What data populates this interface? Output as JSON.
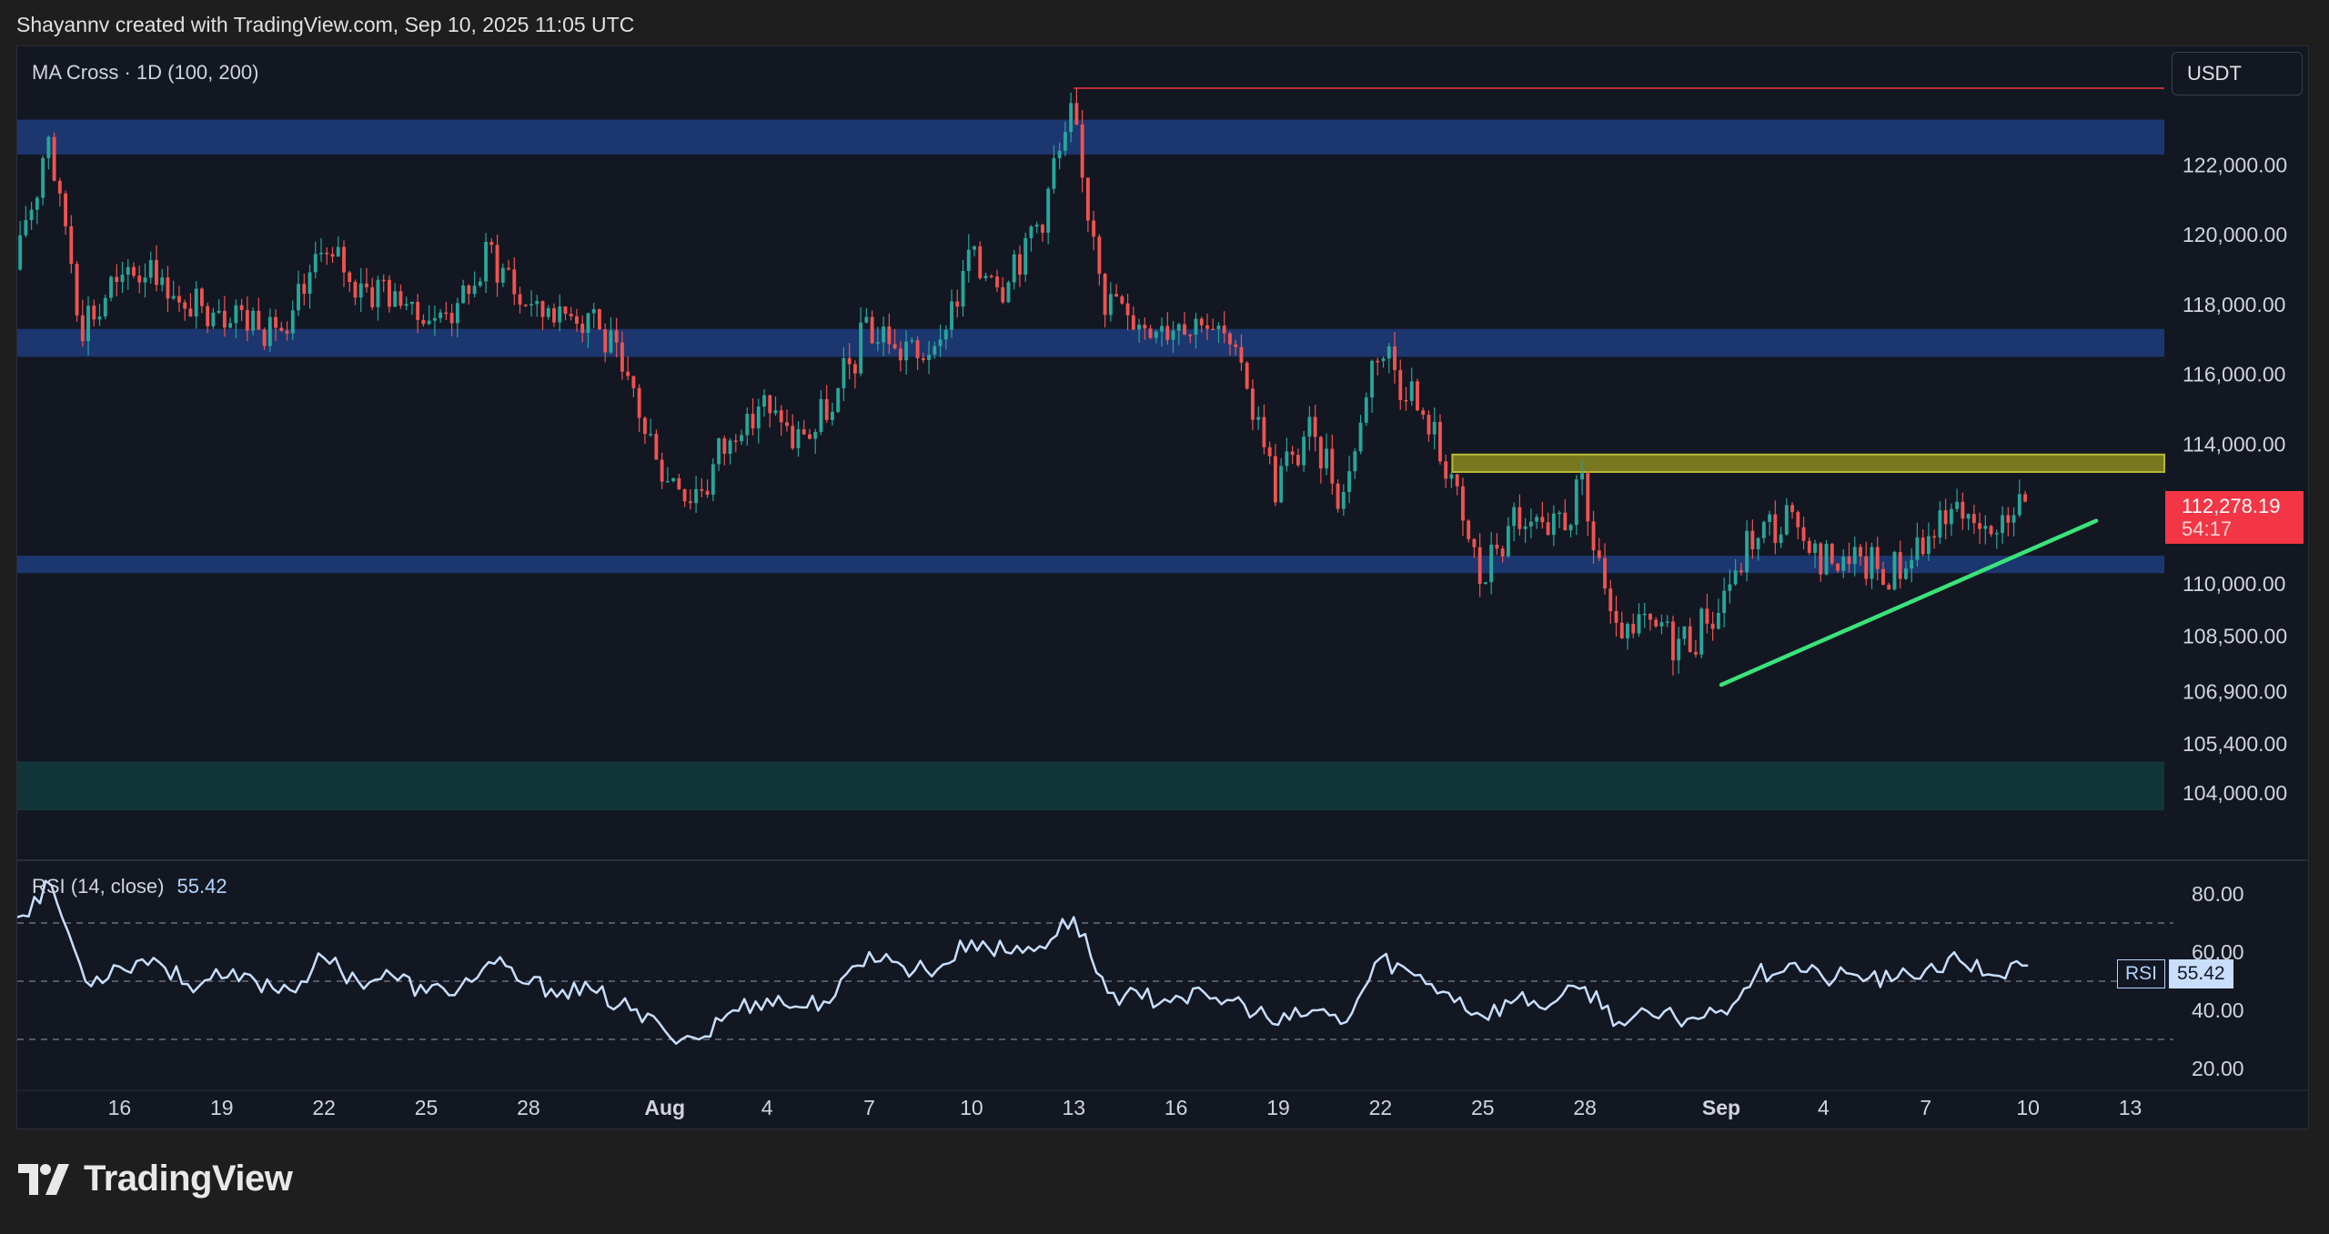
{
  "attribution": "Shayannv created with TradingView.com, Sep 10, 2025 11:05 UTC",
  "indicator_title": "MA Cross · 1D (100, 200)",
  "currency": "USDT",
  "last_price": {
    "price": "112,278.19",
    "countdown": "54:17"
  },
  "rsi_header": {
    "label": "RSI (14, close)",
    "value": "55.42"
  },
  "rsi_axis_label": {
    "name": "RSI",
    "value": "55.42"
  },
  "brand": "TradingView",
  "colors": {
    "background": "#131722",
    "up_candle": "#26a69a",
    "down_candle": "#ef5350",
    "zone_blue": "#1e3a78",
    "zone_yellow": "#8a8a1f",
    "zone_green": "#133a3a",
    "trendline": "#3ae37a",
    "rsi_line": "#c8defc",
    "price_label": "#f23645",
    "high_line": "#f23645"
  },
  "chart_data": [
    {
      "type": "candlestick",
      "title": "MA Cross · 1D (100, 200)",
      "y_unit": "USDT",
      "y_ticks": [
        104000,
        105400,
        106900,
        108500,
        110000,
        114000,
        116000,
        118000,
        120000,
        122000
      ],
      "y_tick_labels": [
        "104,000.00",
        "105,400.00",
        "106,900.00",
        "108,500.00",
        "110,000.00",
        "114,000.00",
        "116,000.00",
        "118,000.00",
        "120,000.00",
        "122,000.00"
      ],
      "ylim": [
        102200,
        125400
      ],
      "x_tick_labels": [
        "16",
        "19",
        "22",
        "25",
        "28",
        "Aug",
        "4",
        "7",
        "10",
        "13",
        "16",
        "19",
        "22",
        "25",
        "28",
        "Sep",
        "4",
        "7",
        "10",
        "13"
      ],
      "x_range": [
        "2025-07-13",
        "2025-09-14"
      ],
      "closes": [
        [
          "2025-07-13",
          119000
        ],
        [
          "2025-07-14",
          122800
        ],
        [
          "2025-07-15",
          117400
        ],
        [
          "2025-07-16",
          118600
        ],
        [
          "2025-07-17",
          119200
        ],
        [
          "2025-07-18",
          117800
        ],
        [
          "2025-07-19",
          118000
        ],
        [
          "2025-07-20",
          117600
        ],
        [
          "2025-07-21",
          117100
        ],
        [
          "2025-07-22",
          119700
        ],
        [
          "2025-07-23",
          118600
        ],
        [
          "2025-07-24",
          118400
        ],
        [
          "2025-07-25",
          117600
        ],
        [
          "2025-07-26",
          117900
        ],
        [
          "2025-07-27",
          119500
        ],
        [
          "2025-07-28",
          118000
        ],
        [
          "2025-07-29",
          117800
        ],
        [
          "2025-07-30",
          117700
        ],
        [
          "2025-07-31",
          115700
        ],
        [
          "2025-08-01",
          113300
        ],
        [
          "2025-08-02",
          112500
        ],
        [
          "2025-08-03",
          114200
        ],
        [
          "2025-08-04",
          115100
        ],
        [
          "2025-08-05",
          114100
        ],
        [
          "2025-08-06",
          115000
        ],
        [
          "2025-08-07",
          117400
        ],
        [
          "2025-08-08",
          116700
        ],
        [
          "2025-08-09",
          116500
        ],
        [
          "2025-08-10",
          119300
        ],
        [
          "2025-08-11",
          118700
        ],
        [
          "2025-08-12",
          120200
        ],
        [
          "2025-08-13",
          123400
        ],
        [
          "2025-08-14",
          118300
        ],
        [
          "2025-08-15",
          117400
        ],
        [
          "2025-08-16",
          117500
        ],
        [
          "2025-08-17",
          117500
        ],
        [
          "2025-08-18",
          116300
        ],
        [
          "2025-08-19",
          112900
        ],
        [
          "2025-08-20",
          114300
        ],
        [
          "2025-08-21",
          112500
        ],
        [
          "2025-08-22",
          116900
        ],
        [
          "2025-08-23",
          115400
        ],
        [
          "2025-08-24",
          113500
        ],
        [
          "2025-08-25",
          110100
        ],
        [
          "2025-08-26",
          111800
        ],
        [
          "2025-08-27",
          111300
        ],
        [
          "2025-08-28",
          112600
        ],
        [
          "2025-08-29",
          108400
        ],
        [
          "2025-08-30",
          108800
        ],
        [
          "2025-08-31",
          108300
        ],
        [
          "2025-09-01",
          109300
        ],
        [
          "2025-09-02",
          111300
        ],
        [
          "2025-09-03",
          111800
        ],
        [
          "2025-09-04",
          110700
        ],
        [
          "2025-09-05",
          110700
        ],
        [
          "2025-09-06",
          110200
        ],
        [
          "2025-09-07",
          111200
        ],
        [
          "2025-09-08",
          112100
        ],
        [
          "2025-09-09",
          111500
        ],
        [
          "2025-09-10",
          112278.19
        ]
      ],
      "all_time_high": 124200,
      "zones": [
        {
          "name": "resistance-upper",
          "from": 122300,
          "to": 123300,
          "color": "blue"
        },
        {
          "name": "resistance-mid",
          "from": 116500,
          "to": 117300,
          "color": "blue"
        },
        {
          "name": "range-high",
          "from": 113200,
          "to": 113700,
          "color": "yellow"
        },
        {
          "name": "support",
          "from": 110300,
          "to": 110800,
          "color": "blue"
        },
        {
          "name": "demand",
          "from": 103500,
          "to": 104900,
          "color": "green"
        }
      ],
      "trendline": {
        "from": [
          "2025-09-01",
          107100
        ],
        "to": [
          "2025-09-12",
          111800
        ]
      }
    },
    {
      "type": "line",
      "title": "RSI (14, close)",
      "y_ticks": [
        20,
        40,
        60,
        80
      ],
      "y_tick_labels": [
        "20.00",
        "40.00",
        "60.00",
        "80.00"
      ],
      "levels": [
        30,
        50,
        70
      ],
      "ylim": [
        15,
        90
      ],
      "last_value": 55.42,
      "values": [
        [
          "2025-07-13",
          72
        ],
        [
          "2025-07-14",
          83
        ],
        [
          "2025-07-15",
          50
        ],
        [
          "2025-07-16",
          55
        ],
        [
          "2025-07-17",
          58
        ],
        [
          "2025-07-18",
          49
        ],
        [
          "2025-07-19",
          51
        ],
        [
          "2025-07-20",
          50
        ],
        [
          "2025-07-21",
          47
        ],
        [
          "2025-07-22",
          58
        ],
        [
          "2025-07-23",
          50
        ],
        [
          "2025-07-24",
          52
        ],
        [
          "2025-07-25",
          46
        ],
        [
          "2025-07-26",
          48
        ],
        [
          "2025-07-27",
          56
        ],
        [
          "2025-07-28",
          49
        ],
        [
          "2025-07-29",
          47
        ],
        [
          "2025-07-30",
          46
        ],
        [
          "2025-07-31",
          40
        ],
        [
          "2025-08-01",
          33
        ],
        [
          "2025-08-02",
          30
        ],
        [
          "2025-08-03",
          40
        ],
        [
          "2025-08-04",
          44
        ],
        [
          "2025-08-05",
          41
        ],
        [
          "2025-08-06",
          45
        ],
        [
          "2025-08-07",
          60
        ],
        [
          "2025-08-08",
          55
        ],
        [
          "2025-08-09",
          54
        ],
        [
          "2025-08-10",
          64
        ],
        [
          "2025-08-11",
          60
        ],
        [
          "2025-08-12",
          62
        ],
        [
          "2025-08-13",
          72
        ],
        [
          "2025-08-14",
          46
        ],
        [
          "2025-08-15",
          44
        ],
        [
          "2025-08-16",
          45
        ],
        [
          "2025-08-17",
          44
        ],
        [
          "2025-08-18",
          42
        ],
        [
          "2025-08-19",
          35
        ],
        [
          "2025-08-20",
          40
        ],
        [
          "2025-08-21",
          36
        ],
        [
          "2025-08-22",
          58
        ],
        [
          "2025-08-23",
          52
        ],
        [
          "2025-08-24",
          46
        ],
        [
          "2025-08-25",
          38
        ],
        [
          "2025-08-26",
          44
        ],
        [
          "2025-08-27",
          42
        ],
        [
          "2025-08-28",
          48
        ],
        [
          "2025-08-29",
          36
        ],
        [
          "2025-08-30",
          38
        ],
        [
          "2025-08-31",
          37
        ],
        [
          "2025-09-01",
          40
        ],
        [
          "2025-09-02",
          52
        ],
        [
          "2025-09-03",
          56
        ],
        [
          "2025-09-04",
          51
        ],
        [
          "2025-09-05",
          52
        ],
        [
          "2025-09-06",
          50
        ],
        [
          "2025-09-07",
          54
        ],
        [
          "2025-09-08",
          57
        ],
        [
          "2025-09-09",
          52
        ],
        [
          "2025-09-10",
          55.42
        ]
      ]
    }
  ]
}
